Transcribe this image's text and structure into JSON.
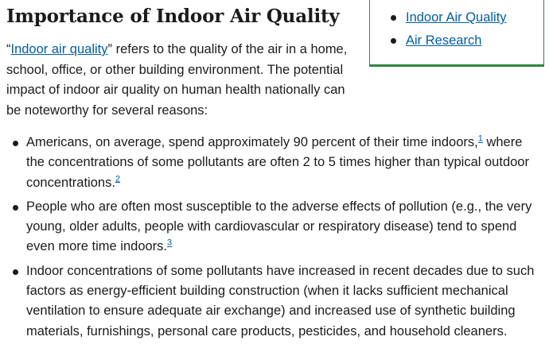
{
  "heading": "Importance of Indoor Air Quality",
  "intro": {
    "open_quote": "“",
    "link_text": "Indoor air quality",
    "text_after_link": "” refers to the quality of the air in a home, school, office, or other building environment. The potential impact of indoor air quality on human health nationally can be noteworthy for several reasons:"
  },
  "related_links": [
    {
      "label": "Indoor Air Quality"
    },
    {
      "label": "Air Research"
    }
  ],
  "reasons": [
    {
      "text_before_note": "Americans, on average, spend approximately 90 percent of their time indoors,",
      "note": "1",
      "text_after_note": " where the concentrations of some pollutants are often 2 to 5 times higher than typical outdoor concentrations.",
      "note2": "2"
    },
    {
      "text_before_note": "People who are often most susceptible to the adverse effects of pollution (e.g., the very young, older adults, people with cardiovascular or respiratory disease) tend to spend even more time indoors.",
      "note": "3"
    },
    {
      "text_before_note": "Indoor concentrations of some pollutants have increased in recent decades due to such factors as energy-efficient building construction (when it lacks sufficient mechanical ventilation to ensure adequate air exchange) and increased use of synthetic building materials, furnishings, personal care products, pesticides, and household cleaners."
    }
  ],
  "colors": {
    "link": "#005ea2",
    "text": "#1b1b1b",
    "box_border": "#2e8540"
  }
}
